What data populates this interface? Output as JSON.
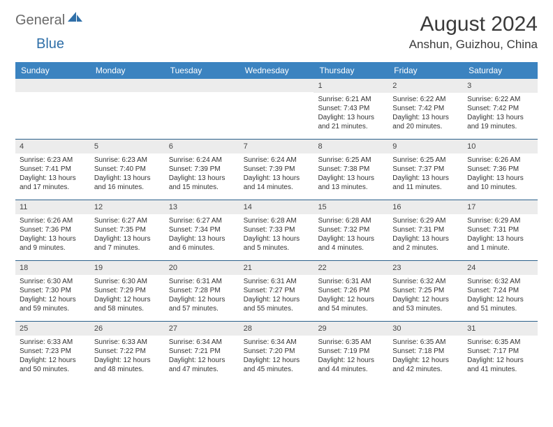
{
  "brand": {
    "word1": "General",
    "word2": "Blue"
  },
  "title": "August 2024",
  "location": "Anshun, Guizhou, China",
  "colors": {
    "header_bg": "#3b83c0",
    "header_text": "#ffffff",
    "daynum_bg": "#ececec",
    "week_divider": "#2a5f8a",
    "body_text": "#333333",
    "logo_gray": "#6a6a6a",
    "logo_blue": "#2f6fa8"
  },
  "day_headers": [
    "Sunday",
    "Monday",
    "Tuesday",
    "Wednesday",
    "Thursday",
    "Friday",
    "Saturday"
  ],
  "weeks": [
    [
      {
        "n": "",
        "sr": "",
        "ss": "",
        "dl1": "",
        "dl2": ""
      },
      {
        "n": "",
        "sr": "",
        "ss": "",
        "dl1": "",
        "dl2": ""
      },
      {
        "n": "",
        "sr": "",
        "ss": "",
        "dl1": "",
        "dl2": ""
      },
      {
        "n": "",
        "sr": "",
        "ss": "",
        "dl1": "",
        "dl2": ""
      },
      {
        "n": "1",
        "sr": "Sunrise: 6:21 AM",
        "ss": "Sunset: 7:43 PM",
        "dl1": "Daylight: 13 hours",
        "dl2": "and 21 minutes."
      },
      {
        "n": "2",
        "sr": "Sunrise: 6:22 AM",
        "ss": "Sunset: 7:42 PM",
        "dl1": "Daylight: 13 hours",
        "dl2": "and 20 minutes."
      },
      {
        "n": "3",
        "sr": "Sunrise: 6:22 AM",
        "ss": "Sunset: 7:42 PM",
        "dl1": "Daylight: 13 hours",
        "dl2": "and 19 minutes."
      }
    ],
    [
      {
        "n": "4",
        "sr": "Sunrise: 6:23 AM",
        "ss": "Sunset: 7:41 PM",
        "dl1": "Daylight: 13 hours",
        "dl2": "and 17 minutes."
      },
      {
        "n": "5",
        "sr": "Sunrise: 6:23 AM",
        "ss": "Sunset: 7:40 PM",
        "dl1": "Daylight: 13 hours",
        "dl2": "and 16 minutes."
      },
      {
        "n": "6",
        "sr": "Sunrise: 6:24 AM",
        "ss": "Sunset: 7:39 PM",
        "dl1": "Daylight: 13 hours",
        "dl2": "and 15 minutes."
      },
      {
        "n": "7",
        "sr": "Sunrise: 6:24 AM",
        "ss": "Sunset: 7:39 PM",
        "dl1": "Daylight: 13 hours",
        "dl2": "and 14 minutes."
      },
      {
        "n": "8",
        "sr": "Sunrise: 6:25 AM",
        "ss": "Sunset: 7:38 PM",
        "dl1": "Daylight: 13 hours",
        "dl2": "and 13 minutes."
      },
      {
        "n": "9",
        "sr": "Sunrise: 6:25 AM",
        "ss": "Sunset: 7:37 PM",
        "dl1": "Daylight: 13 hours",
        "dl2": "and 11 minutes."
      },
      {
        "n": "10",
        "sr": "Sunrise: 6:26 AM",
        "ss": "Sunset: 7:36 PM",
        "dl1": "Daylight: 13 hours",
        "dl2": "and 10 minutes."
      }
    ],
    [
      {
        "n": "11",
        "sr": "Sunrise: 6:26 AM",
        "ss": "Sunset: 7:36 PM",
        "dl1": "Daylight: 13 hours",
        "dl2": "and 9 minutes."
      },
      {
        "n": "12",
        "sr": "Sunrise: 6:27 AM",
        "ss": "Sunset: 7:35 PM",
        "dl1": "Daylight: 13 hours",
        "dl2": "and 7 minutes."
      },
      {
        "n": "13",
        "sr": "Sunrise: 6:27 AM",
        "ss": "Sunset: 7:34 PM",
        "dl1": "Daylight: 13 hours",
        "dl2": "and 6 minutes."
      },
      {
        "n": "14",
        "sr": "Sunrise: 6:28 AM",
        "ss": "Sunset: 7:33 PM",
        "dl1": "Daylight: 13 hours",
        "dl2": "and 5 minutes."
      },
      {
        "n": "15",
        "sr": "Sunrise: 6:28 AM",
        "ss": "Sunset: 7:32 PM",
        "dl1": "Daylight: 13 hours",
        "dl2": "and 4 minutes."
      },
      {
        "n": "16",
        "sr": "Sunrise: 6:29 AM",
        "ss": "Sunset: 7:31 PM",
        "dl1": "Daylight: 13 hours",
        "dl2": "and 2 minutes."
      },
      {
        "n": "17",
        "sr": "Sunrise: 6:29 AM",
        "ss": "Sunset: 7:31 PM",
        "dl1": "Daylight: 13 hours",
        "dl2": "and 1 minute."
      }
    ],
    [
      {
        "n": "18",
        "sr": "Sunrise: 6:30 AM",
        "ss": "Sunset: 7:30 PM",
        "dl1": "Daylight: 12 hours",
        "dl2": "and 59 minutes."
      },
      {
        "n": "19",
        "sr": "Sunrise: 6:30 AM",
        "ss": "Sunset: 7:29 PM",
        "dl1": "Daylight: 12 hours",
        "dl2": "and 58 minutes."
      },
      {
        "n": "20",
        "sr": "Sunrise: 6:31 AM",
        "ss": "Sunset: 7:28 PM",
        "dl1": "Daylight: 12 hours",
        "dl2": "and 57 minutes."
      },
      {
        "n": "21",
        "sr": "Sunrise: 6:31 AM",
        "ss": "Sunset: 7:27 PM",
        "dl1": "Daylight: 12 hours",
        "dl2": "and 55 minutes."
      },
      {
        "n": "22",
        "sr": "Sunrise: 6:31 AM",
        "ss": "Sunset: 7:26 PM",
        "dl1": "Daylight: 12 hours",
        "dl2": "and 54 minutes."
      },
      {
        "n": "23",
        "sr": "Sunrise: 6:32 AM",
        "ss": "Sunset: 7:25 PM",
        "dl1": "Daylight: 12 hours",
        "dl2": "and 53 minutes."
      },
      {
        "n": "24",
        "sr": "Sunrise: 6:32 AM",
        "ss": "Sunset: 7:24 PM",
        "dl1": "Daylight: 12 hours",
        "dl2": "and 51 minutes."
      }
    ],
    [
      {
        "n": "25",
        "sr": "Sunrise: 6:33 AM",
        "ss": "Sunset: 7:23 PM",
        "dl1": "Daylight: 12 hours",
        "dl2": "and 50 minutes."
      },
      {
        "n": "26",
        "sr": "Sunrise: 6:33 AM",
        "ss": "Sunset: 7:22 PM",
        "dl1": "Daylight: 12 hours",
        "dl2": "and 48 minutes."
      },
      {
        "n": "27",
        "sr": "Sunrise: 6:34 AM",
        "ss": "Sunset: 7:21 PM",
        "dl1": "Daylight: 12 hours",
        "dl2": "and 47 minutes."
      },
      {
        "n": "28",
        "sr": "Sunrise: 6:34 AM",
        "ss": "Sunset: 7:20 PM",
        "dl1": "Daylight: 12 hours",
        "dl2": "and 45 minutes."
      },
      {
        "n": "29",
        "sr": "Sunrise: 6:35 AM",
        "ss": "Sunset: 7:19 PM",
        "dl1": "Daylight: 12 hours",
        "dl2": "and 44 minutes."
      },
      {
        "n": "30",
        "sr": "Sunrise: 6:35 AM",
        "ss": "Sunset: 7:18 PM",
        "dl1": "Daylight: 12 hours",
        "dl2": "and 42 minutes."
      },
      {
        "n": "31",
        "sr": "Sunrise: 6:35 AM",
        "ss": "Sunset: 7:17 PM",
        "dl1": "Daylight: 12 hours",
        "dl2": "and 41 minutes."
      }
    ]
  ]
}
